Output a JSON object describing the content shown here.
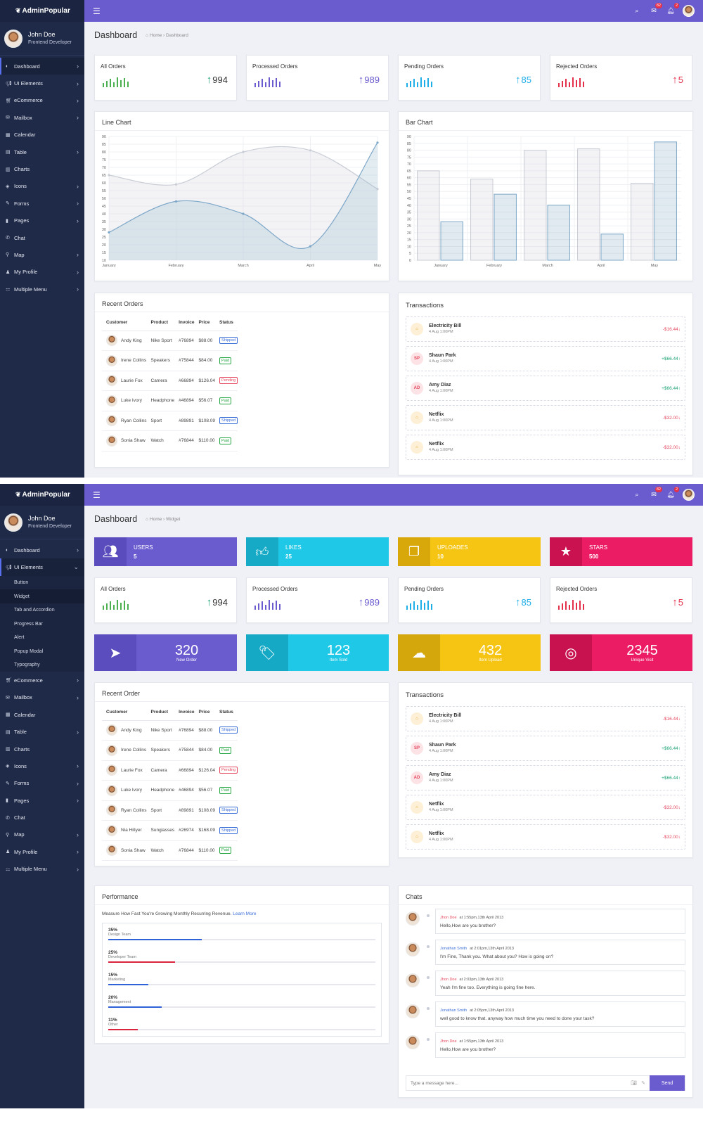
{
  "app": {
    "brand": "AdminPopular",
    "user_name": "John Doe",
    "user_role": "Frontend Developer"
  },
  "topbar": {
    "messages_badge": "82",
    "notifications_badge": "2"
  },
  "nav1": [
    {
      "label": "Dashboard",
      "icon": "dashboard-icon",
      "chev": true,
      "active": true
    },
    {
      "label": "UI Elements",
      "icon": "bullhorn-icon",
      "chev": true
    },
    {
      "label": "eCommerce",
      "icon": "cart-icon",
      "chev": true
    },
    {
      "label": "Mailbox",
      "icon": "envelope-icon",
      "chev": true
    },
    {
      "label": "Calendar",
      "icon": "calendar-icon",
      "chev": false
    },
    {
      "label": "Table",
      "icon": "table-icon",
      "chev": true
    },
    {
      "label": "Charts",
      "icon": "chart-icon",
      "chev": false
    },
    {
      "label": "Icons",
      "icon": "icons-icon",
      "chev": true
    },
    {
      "label": "Forms",
      "icon": "edit-icon",
      "chev": true
    },
    {
      "label": "Pages",
      "icon": "bookmark-icon",
      "chev": true
    },
    {
      "label": "Chat",
      "icon": "chat-icon",
      "chev": false
    },
    {
      "label": "Map",
      "icon": "map-marker-icon",
      "chev": true
    },
    {
      "label": "My Profile",
      "icon": "user-icon",
      "chev": true
    },
    {
      "label": "Multiple Menu",
      "icon": "sitemap-icon",
      "chev": true
    }
  ],
  "nav2": [
    {
      "label": "Dashboard",
      "icon": "dashboard-icon",
      "chev": true
    },
    {
      "label": "UI Elements",
      "icon": "bullhorn-icon",
      "chev": true,
      "open": true,
      "active": true
    },
    {
      "label": "Button",
      "sub": true
    },
    {
      "label": "Widget",
      "sub": true,
      "active": true
    },
    {
      "label": "Tab and Accordion",
      "sub": true
    },
    {
      "label": "Progress Bar",
      "sub": true
    },
    {
      "label": "Alert",
      "sub": true
    },
    {
      "label": "Popup Modal",
      "sub": true
    },
    {
      "label": "Typography",
      "sub": true
    },
    {
      "label": "eCommerce",
      "icon": "cart-icon",
      "chev": true
    },
    {
      "label": "Mailbox",
      "icon": "envelope-icon",
      "chev": true
    },
    {
      "label": "Calendar",
      "icon": "calendar-icon",
      "chev": false
    },
    {
      "label": "Table",
      "icon": "table-icon",
      "chev": true
    },
    {
      "label": "Charts",
      "icon": "chart-icon",
      "chev": false
    },
    {
      "label": "Icons",
      "icon": "icons-icon",
      "chev": true
    },
    {
      "label": "Forms",
      "icon": "edit-icon",
      "chev": true
    },
    {
      "label": "Pages",
      "icon": "bookmark-icon",
      "chev": true
    },
    {
      "label": "Chat",
      "icon": "chat-icon",
      "chev": false
    },
    {
      "label": "Map",
      "icon": "map-marker-icon",
      "chev": true
    },
    {
      "label": "My Profile",
      "icon": "user-icon",
      "chev": true
    },
    {
      "label": "Multiple Menu",
      "icon": "sitemap-icon",
      "chev": true
    }
  ],
  "page1": {
    "title": "Dashboard",
    "crumb_home": "Home",
    "crumb_current": "Dashboard"
  },
  "page2": {
    "title": "Dashboard",
    "crumb_home": "Home",
    "crumb_current": "Widget"
  },
  "stats": [
    {
      "label": "All Orders",
      "value": "994",
      "color": "#4caf50"
    },
    {
      "label": "Processed Orders",
      "value": "989",
      "color": "#6a5bcf"
    },
    {
      "label": "Pending Orders",
      "value": "85",
      "color": "#1eaee8"
    },
    {
      "label": "Rejected Orders",
      "value": "5",
      "color": "#e5304b"
    }
  ],
  "sparkline": [
    6,
    9,
    12,
    7,
    14,
    10,
    13,
    8
  ],
  "widgets": [
    {
      "title": "USERS",
      "value": "5",
      "icon": "users-icon",
      "color": "#6a5bcf",
      "dark": "#5a4cbd"
    },
    {
      "title": "LIKES",
      "value": "25",
      "icon": "thumbs-up-icon",
      "color": "#1ec8e6",
      "dark": "#16aac6"
    },
    {
      "title": "UPLOADES",
      "value": "10",
      "icon": "copy-icon",
      "color": "#f6c514",
      "dark": "#d8a80a"
    },
    {
      "title": "STARS",
      "value": "500",
      "icon": "star-icon",
      "color": "#ec1c64",
      "dark": "#c9124f"
    }
  ],
  "bigstats": [
    {
      "num": "320",
      "cap": "New Order",
      "icon": "paper-plane-icon",
      "color": "#6a5bcf",
      "dark": "#5b4dbd"
    },
    {
      "num": "123",
      "cap": "Item Sold",
      "icon": "tags-icon",
      "color": "#1ec8e6",
      "dark": "#15a9c5"
    },
    {
      "num": "432",
      "cap": "Item Upload",
      "icon": "cloud-upload-icon",
      "color": "#f6c514",
      "dark": "#d4a80c"
    },
    {
      "num": "2345",
      "cap": "Unique Visit",
      "icon": "target-icon",
      "color": "#ec1c64",
      "dark": "#c8124f"
    }
  ],
  "line_card": {
    "title": "Line Chart"
  },
  "bar_card": {
    "title": "Bar Chart"
  },
  "chart_data": [
    {
      "type": "line",
      "title": "Line Chart",
      "categories": [
        "January",
        "February",
        "March",
        "April",
        "May"
      ],
      "ylim": [
        10,
        90
      ],
      "yticks": [
        10,
        15,
        20,
        25,
        30,
        35,
        40,
        45,
        50,
        55,
        60,
        65,
        70,
        75,
        80,
        85,
        90
      ],
      "series": [
        {
          "values": [
            65,
            59,
            80,
            81,
            56
          ],
          "color": "#c8ccd4"
        },
        {
          "values": [
            28,
            48,
            40,
            19,
            86
          ],
          "color": "#7da7c8"
        }
      ]
    },
    {
      "type": "bar",
      "title": "Bar Chart",
      "categories": [
        "January",
        "February",
        "March",
        "April",
        "May"
      ],
      "ylim": [
        0,
        90
      ],
      "yticks": [
        0,
        5,
        10,
        15,
        20,
        25,
        30,
        35,
        40,
        45,
        50,
        55,
        60,
        65,
        70,
        75,
        80,
        85,
        90
      ],
      "series": [
        {
          "values": [
            65,
            59,
            80,
            81,
            56
          ],
          "color": "#c8ccd4"
        },
        {
          "values": [
            28,
            48,
            40,
            19,
            86
          ],
          "color": "#7da7c8"
        }
      ]
    }
  ],
  "orders1": {
    "title": "Recent Orders",
    "columns": [
      "Customer",
      "Product",
      "Invoice",
      "Price",
      "Status"
    ],
    "rows": [
      {
        "customer": "Andy King",
        "product": "Nike Sport",
        "invoice": "#76894",
        "price": "$88.00",
        "status": "Shipped",
        "kind": "shipped"
      },
      {
        "customer": "Irene Collins",
        "product": "Speakers",
        "invoice": "#75844",
        "price": "$84.00",
        "status": "Paid",
        "kind": "paid"
      },
      {
        "customer": "Laurie Fox",
        "product": "Camera",
        "invoice": "#66894",
        "price": "$126.04",
        "status": "Pending",
        "kind": "pending"
      },
      {
        "customer": "Luke Ivory",
        "product": "Headphone",
        "invoice": "#46894",
        "price": "$56.07",
        "status": "Paid",
        "kind": "paid"
      },
      {
        "customer": "Ryan Collins",
        "product": "Sport",
        "invoice": "#89891",
        "price": "$108.09",
        "status": "Shipped",
        "kind": "shipped"
      },
      {
        "customer": "Sonia Shaw",
        "product": "Watch",
        "invoice": "#76844",
        "price": "$110.00",
        "status": "Paid",
        "kind": "paid"
      }
    ]
  },
  "orders2": {
    "title": "Recent Order",
    "columns": [
      "Customer",
      "Product",
      "Invoice",
      "Price",
      "Status"
    ],
    "rows": [
      {
        "customer": "Andy King",
        "product": "Nike Sport",
        "invoice": "#76894",
        "price": "$88.00",
        "status": "Shipped",
        "kind": "shipped"
      },
      {
        "customer": "Irene Collins",
        "product": "Speakers",
        "invoice": "#75844",
        "price": "$84.00",
        "status": "Paid",
        "kind": "paid"
      },
      {
        "customer": "Laurie Fox",
        "product": "Camera",
        "invoice": "#66894",
        "price": "$126.04",
        "status": "Pending",
        "kind": "pending"
      },
      {
        "customer": "Luke Ivory",
        "product": "Headphone",
        "invoice": "#46894",
        "price": "$56.07",
        "status": "Paid",
        "kind": "paid"
      },
      {
        "customer": "Ryan Collins",
        "product": "Sport",
        "invoice": "#89891",
        "price": "$108.09",
        "status": "Shipped",
        "kind": "shipped"
      },
      {
        "customer": "Nia Hillyer",
        "product": "Sunglasses",
        "invoice": "#26974",
        "price": "$168.09",
        "status": "Shipped",
        "kind": "shipped"
      },
      {
        "customer": "Sonia Shaw",
        "product": "Watch",
        "invoice": "#76844",
        "price": "$110.00",
        "status": "Paid",
        "kind": "paid"
      }
    ]
  },
  "transactions": {
    "title": "Transactions",
    "items": [
      {
        "name": "Electricity Bill",
        "date": "4 Aug 1:00PM",
        "amount": "-$16.44",
        "dir": "neg",
        "icon": "home-icon",
        "initials": "⌂",
        "kind": "home"
      },
      {
        "name": "Shaun Park",
        "date": "4 Aug 1:00PM",
        "amount": "+$66.44",
        "dir": "pos",
        "icon": "initials-icon",
        "initials": "SP",
        "kind": "sp"
      },
      {
        "name": "Amy Diaz",
        "date": "4 Aug 1:00PM",
        "amount": "+$66.44",
        "dir": "pos",
        "icon": "initials-icon",
        "initials": "AD",
        "kind": "ad"
      },
      {
        "name": "Netflix",
        "date": "4 Aug 1:00PM",
        "amount": "-$32.00",
        "dir": "neg",
        "icon": "home-icon",
        "initials": "⌂",
        "kind": "home"
      },
      {
        "name": "Netflix",
        "date": "4 Aug 1:00PM",
        "amount": "-$32.00",
        "dir": "neg",
        "icon": "home-icon",
        "initials": "⌂",
        "kind": "home"
      }
    ]
  },
  "performance": {
    "title": "Performance",
    "desc": "Measure How Fast You're Growing Monthly Recurring Revenue.",
    "link": "Learn More",
    "rows": [
      {
        "pct": "35%",
        "name": "Design Team",
        "value": 0.35,
        "color": "#2f62d9"
      },
      {
        "pct": "25%",
        "name": "Developer Team",
        "value": 0.25,
        "color": "#d9243f"
      },
      {
        "pct": "15%",
        "name": "Marketing",
        "value": 0.15,
        "color": "#2f62d9"
      },
      {
        "pct": "20%",
        "name": "Management",
        "value": 0.2,
        "color": "#2f62d9"
      },
      {
        "pct": "11%",
        "name": "Other",
        "value": 0.11,
        "color": "#d9243f"
      }
    ]
  },
  "chats": {
    "title": "Chats",
    "items": [
      {
        "who": "Jhon Doe",
        "when": "at 1:55pm,13th April 2013",
        "msg": "Hello,How are you brother?",
        "jon": false
      },
      {
        "who": "Jonathan Smith",
        "when": "at 2:01pm,13th April 2013",
        "msg": "I'm Fine, Thank you. What about you? How is going on?",
        "jon": true
      },
      {
        "who": "Jhon Doe",
        "when": "at 2:03pm,13th April 2013",
        "msg": "Yeah I'm fine too. Everything is going fine here.",
        "jon": false
      },
      {
        "who": "Jonathan Smith",
        "when": "at 2:05pm,13th April 2013",
        "msg": "well good to know that. anyway how much time you need to done your task?",
        "jon": true
      },
      {
        "who": "Jhon Doe",
        "when": "at 1:55pm,13th April 2013",
        "msg": "Hello,How are you brother?",
        "jon": false
      }
    ],
    "placeholder": "Type a message here...",
    "send": "Send"
  }
}
